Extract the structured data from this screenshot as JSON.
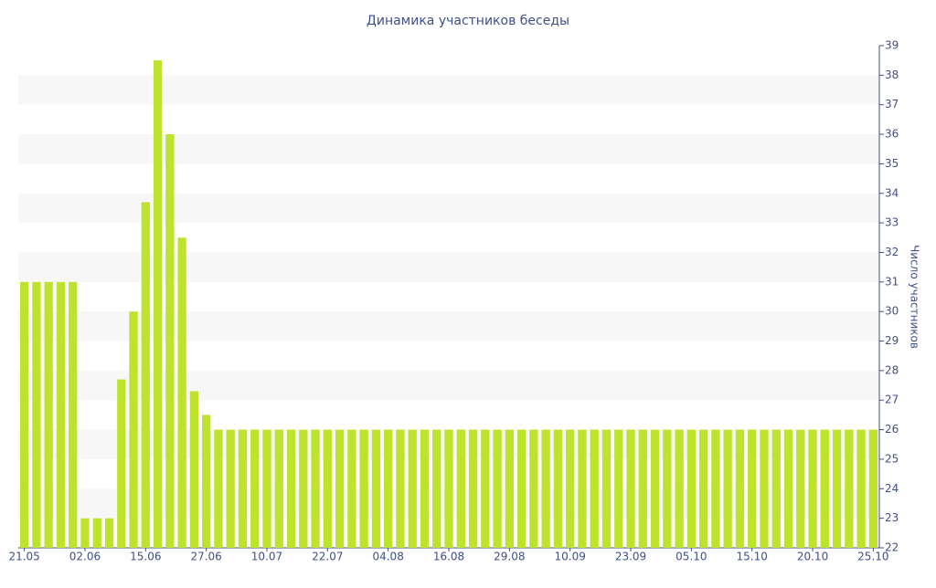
{
  "chart_data": {
    "type": "bar",
    "title": "Динамика участников беседы",
    "y_label": "Число участников",
    "categories": [
      "21.05",
      null,
      null,
      null,
      null,
      "02.06",
      null,
      null,
      null,
      null,
      "15.06",
      null,
      null,
      null,
      null,
      "27.06",
      null,
      null,
      null,
      null,
      "10.07",
      null,
      null,
      null,
      null,
      "22.07",
      null,
      null,
      null,
      null,
      "04.08",
      null,
      null,
      null,
      null,
      "16.08",
      null,
      null,
      null,
      null,
      "29.08",
      null,
      null,
      null,
      null,
      "10.09",
      null,
      null,
      null,
      null,
      "23.09",
      null,
      null,
      null,
      null,
      "05.10",
      null,
      null,
      null,
      null,
      "15.10",
      null,
      null,
      null,
      null,
      "20.10",
      null,
      null,
      null,
      null,
      "25.10"
    ],
    "values": [
      31,
      31,
      31,
      31,
      31,
      23,
      23,
      23,
      27.7,
      30,
      33.7,
      38.5,
      36,
      32.5,
      27.3,
      26.5,
      26,
      26,
      26,
      26,
      26,
      26,
      26,
      26,
      26,
      26,
      26,
      26,
      26,
      26,
      26,
      26,
      26,
      26,
      26,
      26,
      26,
      26,
      26,
      26,
      26,
      26,
      26,
      26,
      26,
      26,
      26,
      26,
      26,
      26,
      26,
      26,
      26,
      26,
      26,
      26,
      26,
      26,
      26,
      26,
      26,
      26,
      26,
      26,
      26,
      26,
      26,
      26,
      26,
      26,
      26
    ],
    "color": "#bde32c",
    "ylim": [
      22,
      39
    ],
    "yticks": [
      22,
      23,
      24,
      25,
      26,
      27,
      28,
      29,
      30,
      31,
      32,
      33,
      34,
      35,
      36,
      37,
      38,
      39
    ],
    "y_axis_side": "right",
    "grid": "bands"
  }
}
